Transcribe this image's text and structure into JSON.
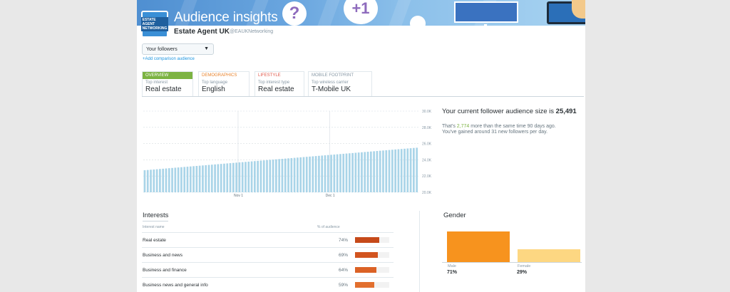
{
  "header": {
    "title": "Audience insights",
    "logo_text": "ESTATE AGENT NETWORKING",
    "account_name": "Estate Agent UK",
    "account_handle": "@EAUKNetworking",
    "banner_glyphs": {
      "question": "?",
      "plus_one": "+1"
    }
  },
  "audience_selector": {
    "value": "Your followers",
    "add_comparison": "+Add comparison audience"
  },
  "tabs": [
    {
      "label": "OVERVIEW",
      "subtitle": "Top interest",
      "value": "Real estate",
      "color": "#7cb342"
    },
    {
      "label": "DEMOGRAPHICS",
      "subtitle": "Top language",
      "value": "English",
      "color": "#e8822a"
    },
    {
      "label": "LIFESTYLE",
      "subtitle": "Top interest type",
      "value": "Real estate",
      "color": "#e0584a"
    },
    {
      "label": "MOBILE FOOTPRINT",
      "subtitle": "Top wireless carrier",
      "value": "T-Mobile UK",
      "color": "#8899a6"
    }
  ],
  "summary": {
    "prefix": "Your current follower audience size is ",
    "size": "25,491",
    "line1_prefix": "That's ",
    "line1_growth": "2,774",
    "line1_suffix": " more than the same time 90 days ago.",
    "line2": "You've gained around 31 new followers per day."
  },
  "chart_data": {
    "type": "bar",
    "ylim": [
      20000,
      30000
    ],
    "yticks": [
      "30.0K",
      "28.0K",
      "26.0K",
      "24.0K",
      "22.0K",
      "20.0K"
    ],
    "xtick_labels": [
      {
        "label": "Nov 1",
        "index": 31
      },
      {
        "label": "Dec 1",
        "index": 61
      }
    ],
    "n_bars": 90,
    "start_value": 22717,
    "end_value": 25491,
    "bar_color": "#a9d4e8",
    "grid": true
  },
  "interests": {
    "title": "Interests",
    "col_name": "Interest name",
    "col_pct": "% of audience",
    "rows": [
      {
        "name": "Real estate",
        "pct_label": "74%",
        "pct": 74,
        "color": "#c64a1a"
      },
      {
        "name": "Business and news",
        "pct_label": "69%",
        "pct": 69,
        "color": "#d2541f"
      },
      {
        "name": "Business and finance",
        "pct_label": "64%",
        "pct": 64,
        "color": "#db6226"
      },
      {
        "name": "Business news and general info",
        "pct_label": "59%",
        "pct": 59,
        "color": "#e26f2e"
      }
    ]
  },
  "gender": {
    "title": "Gender",
    "items": [
      {
        "label": "Male",
        "pct_label": "71%",
        "pct": 71,
        "color": "#f7931e"
      },
      {
        "label": "Female",
        "pct_label": "29%",
        "pct": 29,
        "color": "#fdd782"
      }
    ]
  }
}
